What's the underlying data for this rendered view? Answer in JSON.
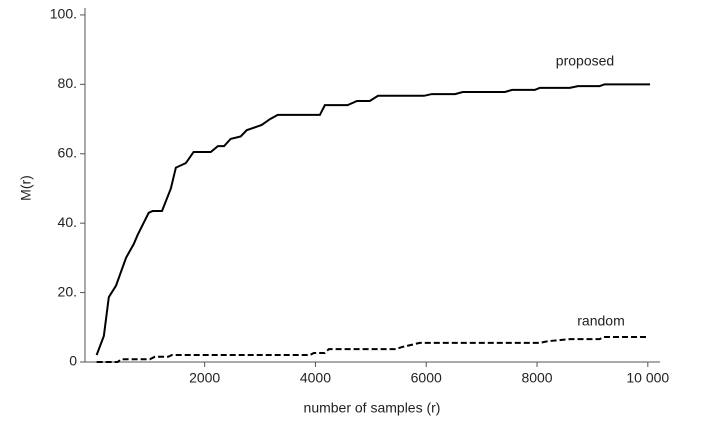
{
  "chart_data": {
    "type": "line",
    "xlabel": "number of samples (r)",
    "ylabel": "M(r)",
    "xlim": [
      -160,
      10220
    ],
    "ylim": [
      0,
      102
    ],
    "xticks": [
      2000,
      4000,
      6000,
      8000,
      {
        "value": 10000,
        "label": "10 000"
      }
    ],
    "yticks": [
      0,
      {
        "value": 20,
        "label": "20."
      },
      {
        "value": 40,
        "label": "40."
      },
      {
        "value": 60,
        "label": "60."
      },
      {
        "value": 80,
        "label": "80."
      },
      {
        "value": 100,
        "label": "100."
      }
    ],
    "series": [
      {
        "name": "proposed",
        "color": "#000000",
        "style": "solid",
        "x": [
          50,
          180,
          270,
          400,
          580,
          720,
          790,
          990,
          1060,
          1230,
          1390,
          1480,
          1660,
          1800,
          2110,
          2240,
          2350,
          2470,
          2650,
          2760,
          3030,
          3180,
          3320,
          4080,
          4170,
          4580,
          4750,
          4980,
          5130,
          5960,
          6100,
          6520,
          6660,
          7420,
          7550,
          7960,
          8050,
          8590,
          8740,
          9130,
          9220,
          10040
        ],
        "values": [
          2,
          7.5,
          18.7,
          22,
          30,
          34,
          36.6,
          43,
          43.5,
          43.5,
          50,
          56,
          57.3,
          60.5,
          60.5,
          62.2,
          62.2,
          64.3,
          65,
          66.8,
          68.3,
          70,
          71.2,
          71.2,
          74,
          74,
          75.2,
          75.2,
          76.7,
          76.7,
          77.2,
          77.2,
          77.8,
          77.8,
          78.4,
          78.4,
          79,
          79,
          79.5,
          79.5,
          80,
          80
        ]
      },
      {
        "name": "random",
        "color": "#000000",
        "style": "dashed",
        "x": [
          50,
          430,
          490,
          1010,
          1100,
          1340,
          1410,
          3900,
          3970,
          4170,
          4240,
          5450,
          5560,
          5880,
          8050,
          8200,
          8590,
          9130,
          9200,
          10000
        ],
        "values": [
          0,
          0,
          0.8,
          0.8,
          1.5,
          1.5,
          2,
          2,
          2.6,
          2.6,
          3.7,
          3.7,
          4.3,
          5.5,
          5.5,
          6,
          6.6,
          6.6,
          7.2,
          7.2
        ]
      }
    ]
  }
}
